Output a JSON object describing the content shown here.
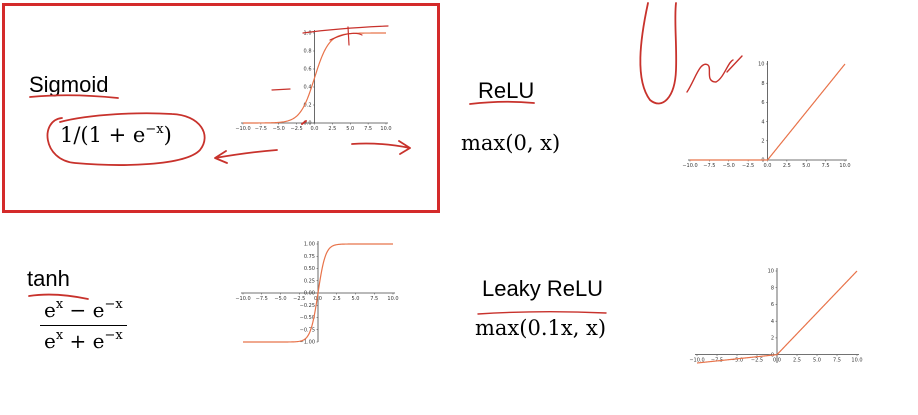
{
  "sigmoid": {
    "name": "Sigmoid",
    "formula": {
      "pre": "1/(1 + e",
      "sup": "−x",
      "post": ")"
    }
  },
  "relu": {
    "name": "ReLU",
    "formula": "max(0, x)"
  },
  "tanh": {
    "name": "tanh",
    "numerator": {
      "a": "e",
      "a_sup": "x",
      "mid": " − e",
      "b_sup": "−x"
    },
    "denominator": {
      "a": "e",
      "a_sup": "x",
      "mid": " + e",
      "b_sup": "−x"
    }
  },
  "leaky_relu": {
    "name": "Leaky ReLU",
    "formula": "max(0.1x, x)"
  },
  "annotation_color": "#c8322c",
  "curve_color": "#e8734a",
  "chart_data": [
    {
      "type": "line",
      "function": "sigmoid",
      "x_range": [
        -10,
        10
      ],
      "y_range": [
        0,
        1
      ],
      "x_ticks": [
        "−10.0",
        "−7.5",
        "−5.0",
        "−2.5",
        "0.0",
        "2.5",
        "5.0",
        "7.5",
        "10.0"
      ],
      "y_ticks": [
        "0.0",
        "0.2",
        "0.4",
        "0.6",
        "0.8",
        "1.0"
      ]
    },
    {
      "type": "line",
      "function": "relu",
      "x_range": [
        -10,
        10
      ],
      "y_range": [
        0,
        10
      ],
      "x_ticks": [
        "−10.0",
        "−7.5",
        "−5.0",
        "−2.5",
        "0.0",
        "2.5",
        "5.0",
        "7.5",
        "10.0"
      ],
      "y_ticks": [
        "0",
        "2",
        "4",
        "6",
        "8",
        "10"
      ]
    },
    {
      "type": "line",
      "function": "tanh",
      "x_range": [
        -10,
        10
      ],
      "y_range": [
        -1,
        1
      ],
      "x_ticks": [
        "−10.0",
        "−7.5",
        "−5.0",
        "−2.5",
        "0.0",
        "2.5",
        "5.0",
        "7.5",
        "10.0"
      ],
      "y_ticks": [
        "1.00",
        "0.75",
        "0.50",
        "0.25",
        "0.00",
        "−0.25",
        "−0.50",
        "−0.75",
        "−1.00"
      ]
    },
    {
      "type": "line",
      "function": "leaky_relu",
      "x_range": [
        -10,
        10
      ],
      "y_range": [
        -1,
        10
      ],
      "x_ticks": [
        "−10.0",
        "−7.5",
        "−5.0",
        "−2.5",
        "0.0",
        "2.5",
        "5.0",
        "7.5",
        "10.0"
      ],
      "y_ticks": [
        "0",
        "2",
        "4",
        "6",
        "8",
        "10"
      ]
    }
  ]
}
